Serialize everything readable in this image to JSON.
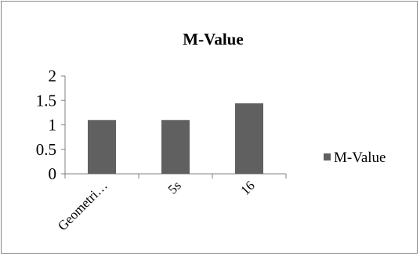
{
  "chart_data": {
    "type": "bar",
    "title": "M-Value",
    "categories": [
      "Geometri…",
      "5s",
      "16"
    ],
    "series": [
      {
        "name": "M-Value",
        "values": [
          1.1,
          1.1,
          1.44
        ]
      }
    ],
    "yticks": [
      "0",
      "0.5",
      "1",
      "1.5",
      "2"
    ],
    "ylim": [
      0,
      2
    ],
    "grid": false,
    "legend_position": "right",
    "bar_color": "#606060",
    "axis_color": "#808080",
    "text_color": "#000000"
  }
}
